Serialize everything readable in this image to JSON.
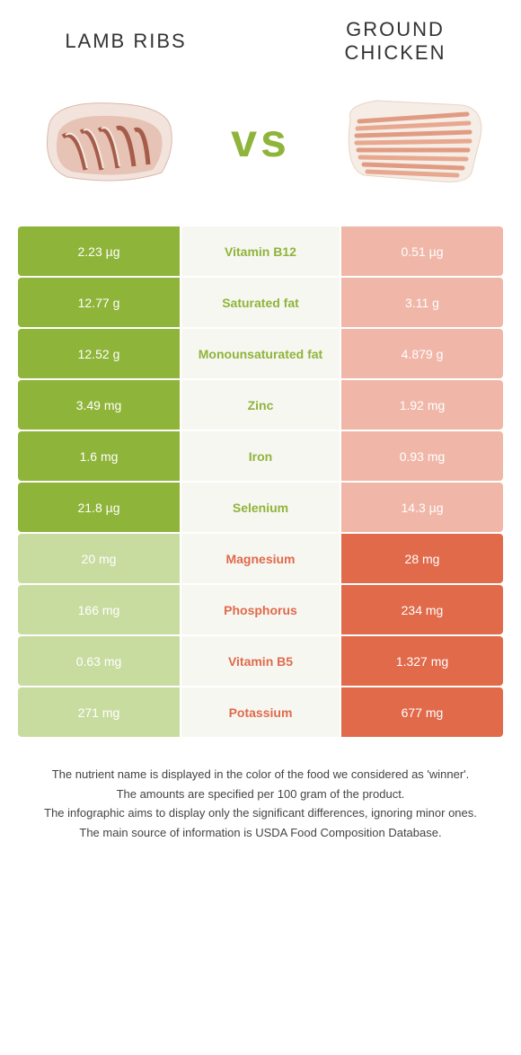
{
  "colors": {
    "left": "#8fb43a",
    "right": "#e06a4a",
    "left_dim": "#c9dca0",
    "right_dim": "#f0b7a8",
    "mid_bg": "#f7f7f2"
  },
  "header": {
    "left_title": "Lamb ribs",
    "right_title": "Ground chicken",
    "vs": "vs"
  },
  "rows": [
    {
      "label": "Vitamin B12",
      "left": "2.23 µg",
      "right": "0.51 µg",
      "winner": "left"
    },
    {
      "label": "Saturated fat",
      "left": "12.77 g",
      "right": "3.11 g",
      "winner": "left"
    },
    {
      "label": "Monounsaturated fat",
      "left": "12.52 g",
      "right": "4.879 g",
      "winner": "left"
    },
    {
      "label": "Zinc",
      "left": "3.49 mg",
      "right": "1.92 mg",
      "winner": "left"
    },
    {
      "label": "Iron",
      "left": "1.6 mg",
      "right": "0.93 mg",
      "winner": "left"
    },
    {
      "label": "Selenium",
      "left": "21.8 µg",
      "right": "14.3 µg",
      "winner": "left"
    },
    {
      "label": "Magnesium",
      "left": "20 mg",
      "right": "28 mg",
      "winner": "right"
    },
    {
      "label": "Phosphorus",
      "left": "166 mg",
      "right": "234 mg",
      "winner": "right"
    },
    {
      "label": "Vitamin B5",
      "left": "0.63 mg",
      "right": "1.327 mg",
      "winner": "right"
    },
    {
      "label": "Potassium",
      "left": "271 mg",
      "right": "677 mg",
      "winner": "right"
    }
  ],
  "notes": [
    "The nutrient name is displayed in the color of the food we considered as 'winner'.",
    "The amounts are specified per 100 gram of the product.",
    "The infographic aims to display only the significant differences, ignoring minor ones.",
    "The main source of information is USDA Food Composition Database."
  ]
}
